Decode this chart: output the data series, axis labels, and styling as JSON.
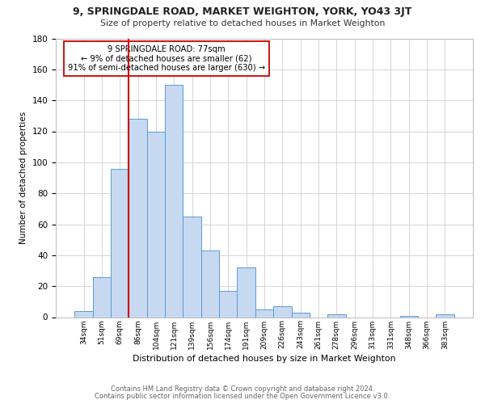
{
  "title": "9, SPRINGDALE ROAD, MARKET WEIGHTON, YORK, YO43 3JT",
  "subtitle": "Size of property relative to detached houses in Market Weighton",
  "xlabel": "Distribution of detached houses by size in Market Weighton",
  "ylabel": "Number of detached properties",
  "footnote1": "Contains HM Land Registry data © Crown copyright and database right 2024.",
  "footnote2": "Contains public sector information licensed under the Open Government Licence v3.0.",
  "bar_labels": [
    "34sqm",
    "51sqm",
    "69sqm",
    "86sqm",
    "104sqm",
    "121sqm",
    "139sqm",
    "156sqm",
    "174sqm",
    "191sqm",
    "209sqm",
    "226sqm",
    "243sqm",
    "261sqm",
    "278sqm",
    "296sqm",
    "313sqm",
    "331sqm",
    "348sqm",
    "366sqm",
    "383sqm"
  ],
  "bar_values": [
    4,
    26,
    96,
    128,
    120,
    150,
    65,
    43,
    17,
    32,
    5,
    7,
    3,
    0,
    2,
    0,
    0,
    0,
    1,
    0,
    2
  ],
  "bar_color": "#c6d9f1",
  "bar_edge_color": "#5b9bd5",
  "ylim": [
    0,
    180
  ],
  "yticks": [
    0,
    20,
    40,
    60,
    80,
    100,
    120,
    140,
    160,
    180
  ],
  "red_line_bin_index": 2,
  "annotation_box_text": "9 SPRINGDALE ROAD: 77sqm\n← 9% of detached houses are smaller (62)\n91% of semi-detached houses are larger (630) →",
  "red_line_color": "#cc0000",
  "grid_color": "#d0d0d0",
  "background_color": "#ffffff"
}
